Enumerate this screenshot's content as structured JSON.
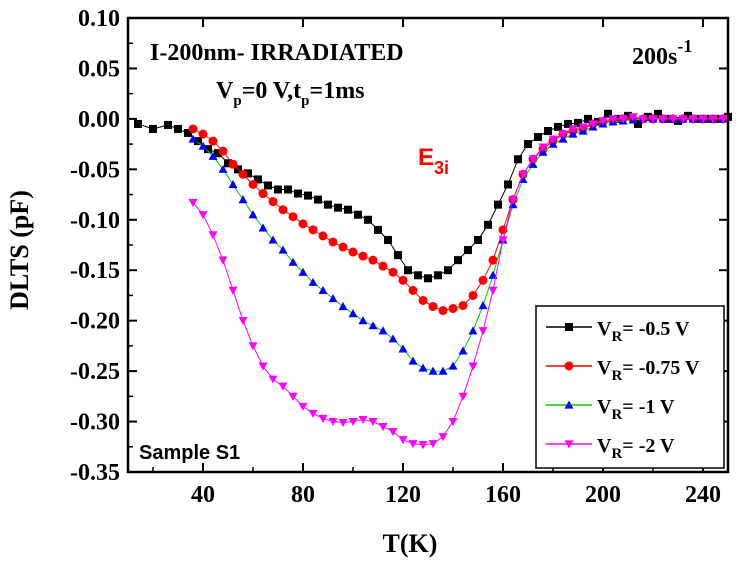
{
  "chart_data": {
    "type": "scatter",
    "xlabel": "T(K)",
    "ylabel": "DLTS (pF)",
    "xlim": [
      10,
      250
    ],
    "ylim": [
      -0.35,
      0.1
    ],
    "x_ticks": [
      40,
      80,
      120,
      160,
      200,
      240
    ],
    "y_ticks": [
      0.1,
      0.05,
      0.0,
      -0.05,
      -0.1,
      -0.15,
      -0.2,
      -0.25,
      -0.3,
      -0.35
    ],
    "x_tick_labels": [
      "40",
      "80",
      "120",
      "160",
      "200",
      "240"
    ],
    "y_tick_labels": [
      "0.10",
      "0.05",
      "0.00",
      "-0.05",
      "-0.10",
      "-0.15",
      "-0.20",
      "-0.25",
      "-0.30",
      "-0.35"
    ],
    "grid": false,
    "legend_position": "bottom-right",
    "annotations": {
      "sample_title": "I-200nm- IRRADIATED",
      "rate_base": "200s",
      "rate_exp": "-1",
      "cond_vp": "V",
      "cond_vp_sub": "p",
      "cond_vp_rest": "=0 V,t",
      "cond_tp_sub": "p",
      "cond_tp_rest": "=1ms",
      "peak_label": "E",
      "peak_label_sub": "3i",
      "sample_label": "Sample S1"
    },
    "series": [
      {
        "name": "= -0.5 V",
        "vr": "V",
        "vr_sub": "R",
        "color": "#000000",
        "marker": "square",
        "points": [
          [
            14,
            -0.005
          ],
          [
            20,
            -0.01
          ],
          [
            26,
            -0.006
          ],
          [
            30,
            -0.01
          ],
          [
            34,
            -0.014
          ],
          [
            38,
            -0.022
          ],
          [
            42,
            -0.03
          ],
          [
            46,
            -0.034
          ],
          [
            50,
            -0.044
          ],
          [
            54,
            -0.05
          ],
          [
            58,
            -0.054
          ],
          [
            62,
            -0.06
          ],
          [
            66,
            -0.066
          ],
          [
            70,
            -0.07
          ],
          [
            74,
            -0.07
          ],
          [
            78,
            -0.074
          ],
          [
            82,
            -0.076
          ],
          [
            86,
            -0.08
          ],
          [
            90,
            -0.085
          ],
          [
            94,
            -0.088
          ],
          [
            98,
            -0.09
          ],
          [
            102,
            -0.095
          ],
          [
            106,
            -0.1
          ],
          [
            110,
            -0.11
          ],
          [
            114,
            -0.12
          ],
          [
            118,
            -0.135
          ],
          [
            122,
            -0.15
          ],
          [
            126,
            -0.155
          ],
          [
            130,
            -0.158
          ],
          [
            134,
            -0.155
          ],
          [
            138,
            -0.15
          ],
          [
            142,
            -0.14
          ],
          [
            146,
            -0.13
          ],
          [
            150,
            -0.12
          ],
          [
            154,
            -0.105
          ],
          [
            158,
            -0.085
          ],
          [
            162,
            -0.065
          ],
          [
            166,
            -0.04
          ],
          [
            170,
            -0.025
          ],
          [
            174,
            -0.018
          ],
          [
            178,
            -0.012
          ],
          [
            182,
            -0.008
          ],
          [
            186,
            -0.005
          ],
          [
            190,
            -0.004
          ],
          [
            194,
            0.0
          ],
          [
            198,
            -0.003
          ],
          [
            202,
            0.005
          ],
          [
            206,
            0.0
          ],
          [
            210,
            0.003
          ],
          [
            214,
            -0.005
          ],
          [
            218,
            0.002
          ],
          [
            222,
            0.005
          ],
          [
            226,
            0.0
          ],
          [
            230,
            -0.002
          ],
          [
            234,
            0.003
          ],
          [
            238,
            0.0
          ],
          [
            242,
            0.0
          ],
          [
            246,
            0.0
          ],
          [
            250,
            0.002
          ]
        ]
      },
      {
        "name": "= -0.75 V",
        "vr": "V",
        "vr_sub": "R",
        "color": "#ff0000",
        "marker": "circle",
        "points": [
          [
            36,
            -0.01
          ],
          [
            40,
            -0.015
          ],
          [
            44,
            -0.022
          ],
          [
            48,
            -0.032
          ],
          [
            52,
            -0.045
          ],
          [
            56,
            -0.055
          ],
          [
            60,
            -0.065
          ],
          [
            64,
            -0.074
          ],
          [
            68,
            -0.082
          ],
          [
            72,
            -0.09
          ],
          [
            76,
            -0.097
          ],
          [
            80,
            -0.104
          ],
          [
            84,
            -0.11
          ],
          [
            88,
            -0.116
          ],
          [
            92,
            -0.122
          ],
          [
            96,
            -0.127
          ],
          [
            100,
            -0.132
          ],
          [
            104,
            -0.136
          ],
          [
            108,
            -0.14
          ],
          [
            112,
            -0.146
          ],
          [
            116,
            -0.152
          ],
          [
            120,
            -0.16
          ],
          [
            124,
            -0.17
          ],
          [
            128,
            -0.18
          ],
          [
            132,
            -0.186
          ],
          [
            136,
            -0.19
          ],
          [
            140,
            -0.188
          ],
          [
            144,
            -0.185
          ],
          [
            148,
            -0.175
          ],
          [
            152,
            -0.16
          ],
          [
            156,
            -0.14
          ],
          [
            160,
            -0.11
          ],
          [
            164,
            -0.08
          ],
          [
            168,
            -0.055
          ],
          [
            172,
            -0.04
          ],
          [
            176,
            -0.03
          ],
          [
            180,
            -0.022
          ],
          [
            184,
            -0.015
          ],
          [
            188,
            -0.012
          ],
          [
            192,
            -0.01
          ],
          [
            196,
            -0.005
          ],
          [
            200,
            -0.003
          ],
          [
            204,
            -0.002
          ],
          [
            208,
            0.0
          ],
          [
            212,
            0.0
          ],
          [
            216,
            0.0
          ],
          [
            220,
            0.0
          ],
          [
            224,
            0.0
          ],
          [
            228,
            0.0
          ],
          [
            232,
            0.0
          ],
          [
            236,
            0.0
          ],
          [
            240,
            0.0
          ],
          [
            244,
            0.0
          ],
          [
            248,
            0.0
          ]
        ]
      },
      {
        "name": "= -1 V",
        "vr": "V",
        "vr_sub": "R",
        "color": "#0000ff",
        "line_color": "#00cc00",
        "marker": "triangle-up",
        "points": [
          [
            36,
            -0.02
          ],
          [
            40,
            -0.027
          ],
          [
            44,
            -0.037
          ],
          [
            48,
            -0.05
          ],
          [
            52,
            -0.065
          ],
          [
            56,
            -0.08
          ],
          [
            60,
            -0.095
          ],
          [
            64,
            -0.108
          ],
          [
            68,
            -0.12
          ],
          [
            72,
            -0.13
          ],
          [
            76,
            -0.142
          ],
          [
            80,
            -0.152
          ],
          [
            84,
            -0.162
          ],
          [
            88,
            -0.17
          ],
          [
            92,
            -0.178
          ],
          [
            96,
            -0.186
          ],
          [
            100,
            -0.193
          ],
          [
            104,
            -0.2
          ],
          [
            108,
            -0.205
          ],
          [
            112,
            -0.21
          ],
          [
            116,
            -0.218
          ],
          [
            120,
            -0.228
          ],
          [
            124,
            -0.24
          ],
          [
            128,
            -0.247
          ],
          [
            132,
            -0.25
          ],
          [
            136,
            -0.25
          ],
          [
            140,
            -0.245
          ],
          [
            144,
            -0.23
          ],
          [
            148,
            -0.21
          ],
          [
            152,
            -0.185
          ],
          [
            156,
            -0.155
          ],
          [
            160,
            -0.12
          ],
          [
            164,
            -0.085
          ],
          [
            168,
            -0.06
          ],
          [
            172,
            -0.045
          ],
          [
            176,
            -0.033
          ],
          [
            180,
            -0.025
          ],
          [
            184,
            -0.02
          ],
          [
            188,
            -0.015
          ],
          [
            192,
            -0.012
          ],
          [
            196,
            -0.008
          ],
          [
            200,
            -0.005
          ],
          [
            204,
            -0.003
          ],
          [
            208,
            -0.002
          ],
          [
            212,
            -0.001
          ],
          [
            216,
            0.0
          ],
          [
            220,
            0.0
          ],
          [
            224,
            0.0
          ],
          [
            228,
            0.0
          ],
          [
            232,
            0.0
          ],
          [
            236,
            0.0
          ],
          [
            240,
            0.0
          ],
          [
            244,
            0.0
          ],
          [
            248,
            0.0
          ]
        ]
      },
      {
        "name": "= -2 V",
        "vr": "V",
        "vr_sub": "R",
        "color": "#ff00ff",
        "marker": "triangle-down",
        "points": [
          [
            36,
            -0.083
          ],
          [
            40,
            -0.095
          ],
          [
            44,
            -0.115
          ],
          [
            48,
            -0.14
          ],
          [
            52,
            -0.17
          ],
          [
            56,
            -0.2
          ],
          [
            60,
            -0.225
          ],
          [
            64,
            -0.245
          ],
          [
            68,
            -0.258
          ],
          [
            72,
            -0.265
          ],
          [
            76,
            -0.275
          ],
          [
            80,
            -0.285
          ],
          [
            84,
            -0.292
          ],
          [
            88,
            -0.297
          ],
          [
            92,
            -0.3
          ],
          [
            96,
            -0.301
          ],
          [
            100,
            -0.3
          ],
          [
            104,
            -0.298
          ],
          [
            108,
            -0.3
          ],
          [
            112,
            -0.305
          ],
          [
            116,
            -0.31
          ],
          [
            120,
            -0.318
          ],
          [
            124,
            -0.322
          ],
          [
            128,
            -0.323
          ],
          [
            132,
            -0.322
          ],
          [
            136,
            -0.315
          ],
          [
            140,
            -0.3
          ],
          [
            144,
            -0.275
          ],
          [
            148,
            -0.245
          ],
          [
            152,
            -0.21
          ],
          [
            156,
            -0.17
          ],
          [
            160,
            -0.12
          ],
          [
            164,
            -0.08
          ],
          [
            168,
            -0.055
          ],
          [
            172,
            -0.04
          ],
          [
            176,
            -0.028
          ],
          [
            180,
            -0.02
          ],
          [
            184,
            -0.015
          ],
          [
            188,
            -0.01
          ],
          [
            192,
            -0.008
          ],
          [
            196,
            -0.005
          ],
          [
            200,
            -0.002
          ],
          [
            204,
            0.0
          ],
          [
            208,
            0.0
          ],
          [
            212,
            0.002
          ],
          [
            216,
            0.0
          ],
          [
            220,
            0.0
          ],
          [
            224,
            0.0
          ],
          [
            228,
            0.0
          ],
          [
            232,
            0.0
          ],
          [
            236,
            0.0
          ],
          [
            240,
            0.0
          ],
          [
            244,
            0.0
          ],
          [
            248,
            0.0
          ]
        ]
      }
    ]
  }
}
